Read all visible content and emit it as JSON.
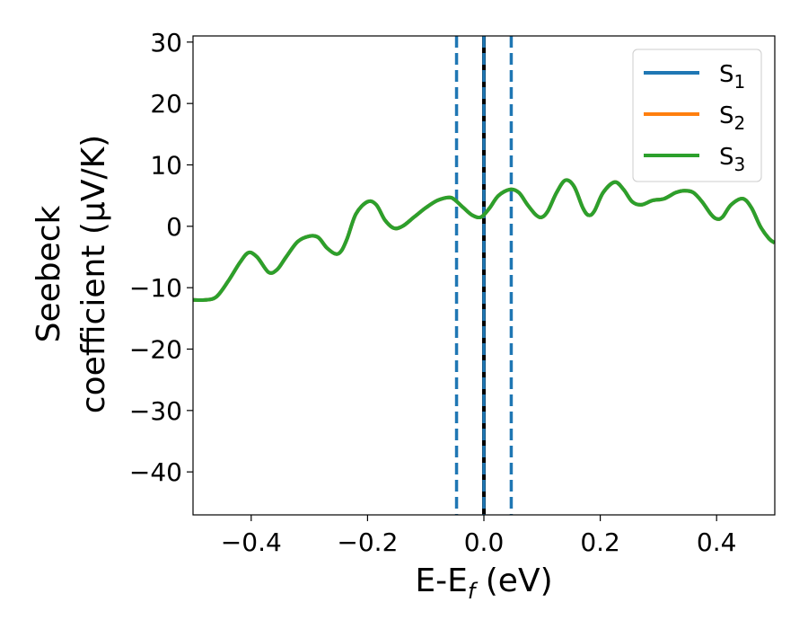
{
  "chart_data": {
    "type": "line",
    "title": "",
    "xlabel": "E-E",
    "xlabel_sub": "f",
    "xlabel_suffix": " (eV)",
    "ylabel_line1": "Seebeck",
    "ylabel_line2": "coefficient  (μV/K)",
    "xlim": [
      -0.5,
      0.5
    ],
    "ylim": [
      -47,
      31
    ],
    "xticks": [
      -0.4,
      -0.2,
      0.0,
      0.2,
      0.4
    ],
    "xtick_labels": [
      "−0.4",
      "−0.2",
      "0.0",
      "0.2",
      "0.4"
    ],
    "yticks": [
      30,
      20,
      10,
      0,
      -10,
      -20,
      -30,
      -40
    ],
    "ytick_labels": [
      "30",
      "20",
      "10",
      "0",
      "−10",
      "−20",
      "−30",
      "−40"
    ],
    "grid": false,
    "legend_position": "top-right",
    "vlines": [
      {
        "x": -0.047,
        "style": "dashed",
        "color": "#1f77b4"
      },
      {
        "x": 0.0,
        "style": "solid",
        "color": "#000000"
      },
      {
        "x": 0.0,
        "style": "dashed",
        "color": "#1f77b4"
      },
      {
        "x": 0.047,
        "style": "dashed",
        "color": "#1f77b4"
      }
    ],
    "x": [
      -0.5,
      -0.48,
      -0.46,
      -0.44,
      -0.42,
      -0.405,
      -0.39,
      -0.37,
      -0.355,
      -0.34,
      -0.32,
      -0.3,
      -0.285,
      -0.27,
      -0.255,
      -0.245,
      -0.235,
      -0.22,
      -0.2,
      -0.185,
      -0.17,
      -0.155,
      -0.14,
      -0.12,
      -0.1,
      -0.08,
      -0.06,
      -0.05,
      -0.035,
      -0.02,
      -0.005,
      0.01,
      0.025,
      0.045,
      0.06,
      0.075,
      0.09,
      0.1,
      0.11,
      0.125,
      0.14,
      0.155,
      0.17,
      0.18,
      0.19,
      0.205,
      0.225,
      0.24,
      0.255,
      0.27,
      0.29,
      0.31,
      0.33,
      0.345,
      0.36,
      0.375,
      0.39,
      0.4,
      0.41,
      0.425,
      0.445,
      0.46,
      0.475,
      0.49,
      0.5
    ],
    "series": [
      {
        "name": "S1",
        "color": "#1f77b4",
        "values": [
          -12,
          -12,
          -11.5,
          -9,
          -6,
          -4.3,
          -5,
          -7.5,
          -7,
          -5,
          -2.5,
          -1.6,
          -1.8,
          -3.5,
          -4.5,
          -4,
          -2,
          2,
          4,
          3.5,
          1,
          -0.3,
          0,
          1.5,
          3,
          4.2,
          4.7,
          4.3,
          3,
          1.8,
          1.5,
          3,
          5,
          6,
          5.5,
          3.5,
          1.8,
          1.5,
          2.5,
          5.5,
          7.5,
          6.5,
          3,
          1.8,
          2.5,
          5.5,
          7.2,
          6,
          4,
          3.5,
          4.2,
          4.5,
          5.5,
          5.8,
          5.5,
          4,
          2,
          1.2,
          1.5,
          3.5,
          4.5,
          3,
          0,
          -2,
          -2.7
        ]
      },
      {
        "name": "S2",
        "color": "#ff7f0e",
        "values": [
          -12,
          -12,
          -11.5,
          -9,
          -6,
          -4.3,
          -5,
          -7.5,
          -7,
          -5,
          -2.5,
          -1.6,
          -1.8,
          -3.5,
          -4.5,
          -4,
          -2,
          2,
          4,
          3.5,
          1,
          -0.3,
          0,
          1.5,
          3,
          4.2,
          4.7,
          4.3,
          3,
          1.8,
          1.5,
          3,
          5,
          6,
          5.5,
          3.5,
          1.8,
          1.5,
          2.5,
          5.5,
          7.5,
          6.5,
          3,
          1.8,
          2.5,
          5.5,
          7.2,
          6,
          4,
          3.5,
          4.2,
          4.5,
          5.5,
          5.8,
          5.5,
          4,
          2,
          1.2,
          1.5,
          3.5,
          4.5,
          3,
          0,
          -2,
          -2.7
        ]
      },
      {
        "name": "S3",
        "color": "#2ca02c",
        "values": [
          -12,
          -12,
          -11.5,
          -9,
          -6,
          -4.3,
          -5,
          -7.5,
          -7,
          -5,
          -2.5,
          -1.6,
          -1.8,
          -3.5,
          -4.5,
          -4,
          -2,
          2,
          4,
          3.5,
          1,
          -0.3,
          0,
          1.5,
          3,
          4.2,
          4.7,
          4.3,
          3,
          1.8,
          1.5,
          3,
          5,
          6,
          5.5,
          3.5,
          1.8,
          1.5,
          2.5,
          5.5,
          7.5,
          6.5,
          3,
          1.8,
          2.5,
          5.5,
          7.2,
          6,
          4,
          3.5,
          4.2,
          4.5,
          5.5,
          5.8,
          5.5,
          4,
          2,
          1.2,
          1.5,
          3.5,
          4.5,
          3,
          0,
          -2,
          -2.7
        ]
      }
    ],
    "legend": [
      {
        "label": "S",
        "sub": "1",
        "color": "#1f77b4"
      },
      {
        "label": "S",
        "sub": "2",
        "color": "#ff7f0e"
      },
      {
        "label": "S",
        "sub": "3",
        "color": "#2ca02c"
      }
    ]
  }
}
